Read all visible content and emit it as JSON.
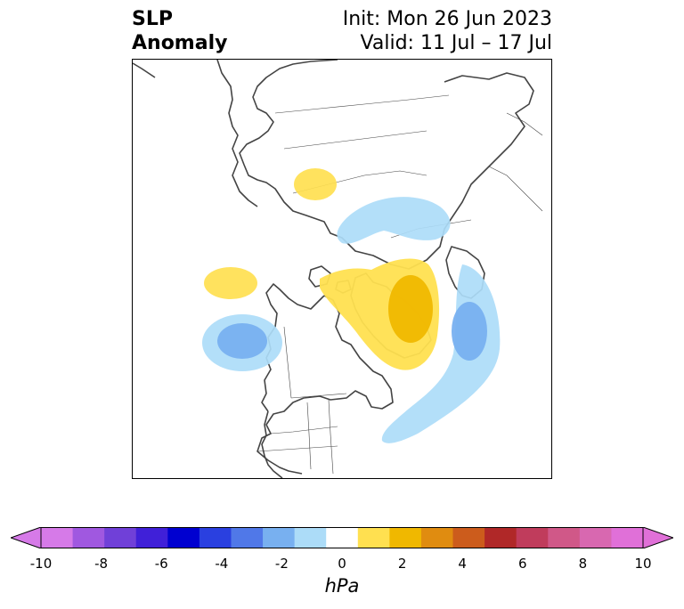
{
  "title": {
    "left_line1": "SLP",
    "left_line2": "Anomaly",
    "right_line1": "Init: Mon 26 Jun 2023",
    "right_line2": "Valid: 11 Jul – 17 Jul"
  },
  "colorbar": {
    "unit": "hPa",
    "tick_labels": [
      "-10",
      "-8",
      "-6",
      "-4",
      "-2",
      "0",
      "2",
      "4",
      "6",
      "8",
      "10"
    ],
    "bins": [
      "#d67ae8",
      "#a058e0",
      "#7040d8",
      "#4020d8",
      "#0000d0",
      "#2a40e0",
      "#5078e8",
      "#78b0f0",
      "#acdcf8",
      "#ffffff",
      "#ffe050",
      "#f0b800",
      "#e08c10",
      "#cc5c1c",
      "#b02828",
      "#c03c5c",
      "#d05888",
      "#d868b0",
      "#e070d8"
    ],
    "extend_under": "#d67ae8",
    "extend_over": "#e070d8"
  }
}
